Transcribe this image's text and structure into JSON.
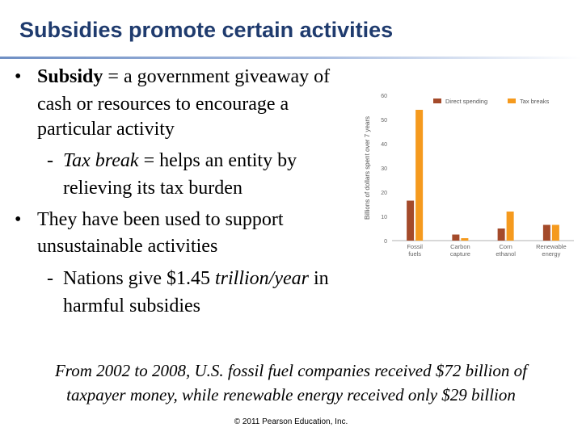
{
  "slide": {
    "title": "Subsidies promote certain activities",
    "bullet_glyph": "•",
    "dash_glyph": "-",
    "bullet1": {
      "term": "Subsidy",
      "rest": " = a government giveaway of",
      "line2": "cash or resources to encourage a",
      "line3": "particular activity"
    },
    "sub1": {
      "term": "Tax break",
      "rest": " = helps an entity by",
      "line2": "relieving its tax burden"
    },
    "bullet2": {
      "line1": "They have been used to support",
      "line2": "unsustainable activities"
    },
    "sub2": {
      "pre": "Nations give $1.45 ",
      "em": "trillion/year",
      "post": " in",
      "line2": "harmful subsidies"
    },
    "footer": {
      "line1": "From 2002 to 2008, U.S. fossil fuel companies received $72 billion of",
      "line2": "taxpayer money, while renewable energy received only $29 billion"
    },
    "copyright": "© 2011 Pearson Education, Inc."
  },
  "chart_data": {
    "type": "bar",
    "categories": [
      [
        "Fossil",
        "fuels"
      ],
      [
        "Carbon",
        "capture"
      ],
      [
        "Corn",
        "ethanol"
      ],
      [
        "Renewable",
        "energy"
      ]
    ],
    "series": [
      {
        "name": "Direct spending",
        "color": "#a44a2a",
        "values": [
          16.5,
          2.5,
          5,
          6.5
        ]
      },
      {
        "name": "Tax breaks",
        "color": "#f59a1e",
        "values": [
          54,
          1,
          12,
          6.5
        ]
      }
    ],
    "ylabel": "Billions of dollars spent over 7 years",
    "ylim": [
      0,
      60
    ],
    "yticks": [
      0,
      10,
      20,
      30,
      40,
      50,
      60
    ],
    "grid": false,
    "legend_position": "top"
  }
}
